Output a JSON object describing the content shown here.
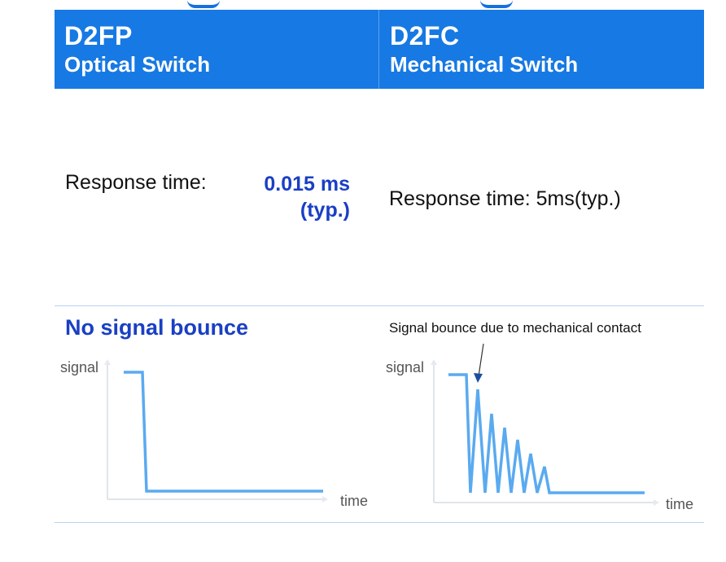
{
  "header": {
    "left": {
      "model": "D2FP",
      "type": "Optical Switch"
    },
    "right": {
      "model": "D2FC",
      "type": "Mechanical Switch"
    }
  },
  "response": {
    "left_label": "Response time:",
    "left_value_line1": "0.015 ms",
    "left_value_line2": "(typ.)",
    "right_text": "Response time:  5ms(typ.)"
  },
  "signal": {
    "left_title": "No signal bounce",
    "right_annotation": "Signal bounce due to mechanical contact",
    "y_label": "signal",
    "x_label": "time"
  },
  "colors": {
    "header_bg": "#1779e3",
    "accent_text": "#1a3fc4",
    "signal_line": "#5aaaf0",
    "axis": "#d6dce4"
  }
}
